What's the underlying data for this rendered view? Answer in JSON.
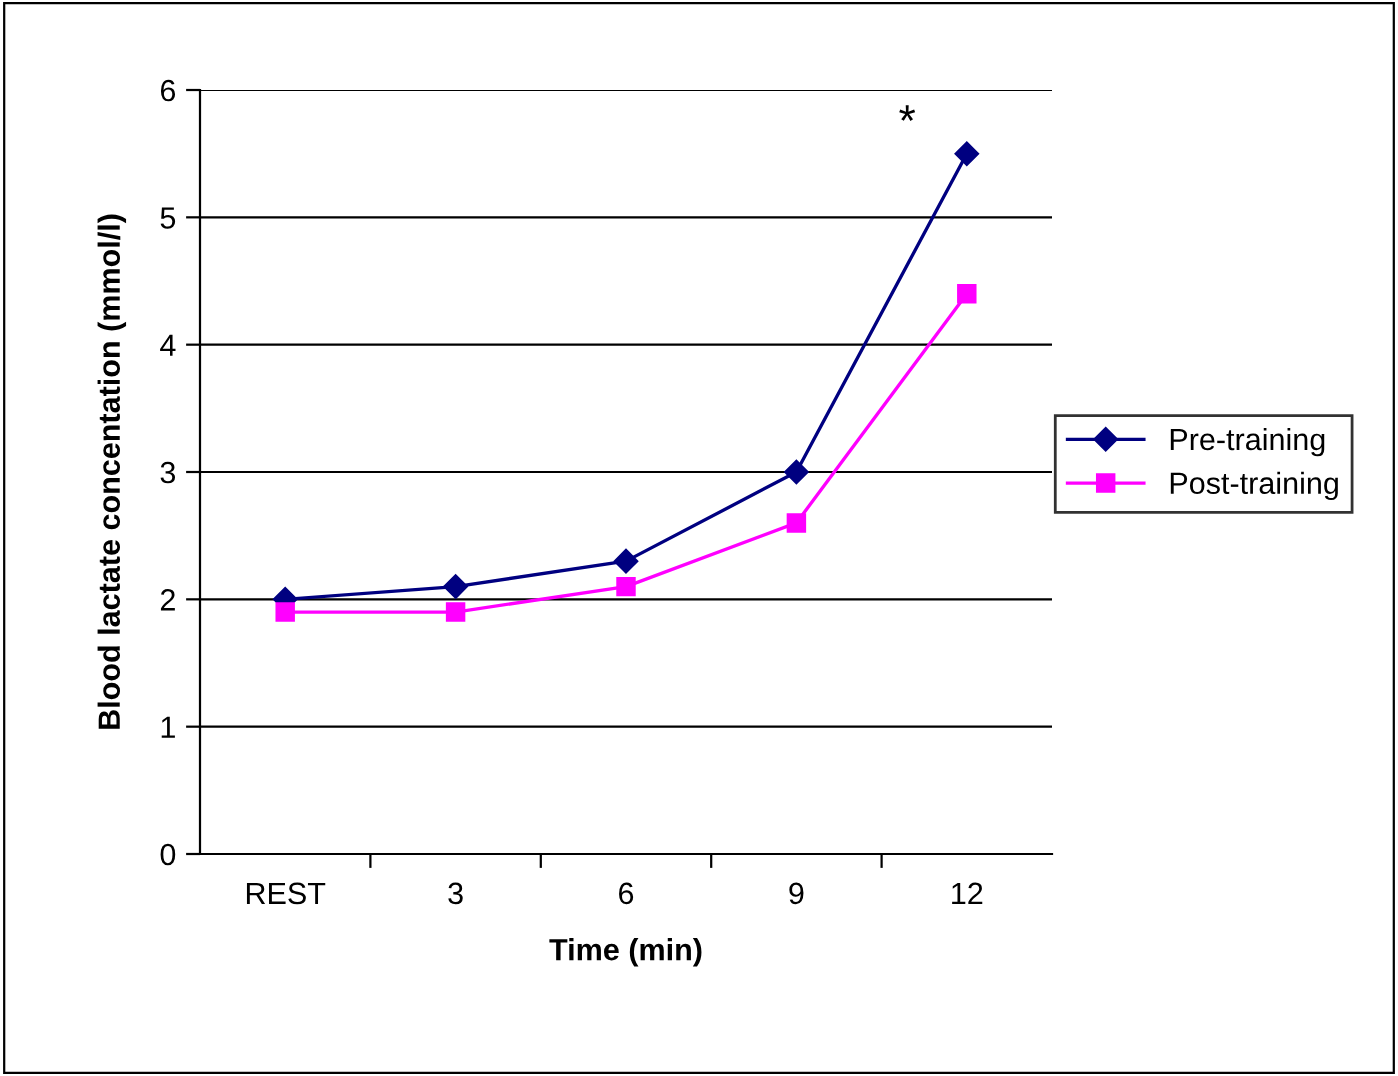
{
  "chart_data": {
    "type": "line",
    "xlabel": "Time (min)",
    "ylabel": "Blood lactate concentation (mmol/l)",
    "categories": [
      "REST",
      "3",
      "6",
      "9",
      "12"
    ],
    "series": [
      {
        "name": "Pre-training",
        "color": "#000080",
        "marker": "diamond",
        "values": [
          2.0,
          2.1,
          2.3,
          3.0,
          5.5
        ]
      },
      {
        "name": "Post-training",
        "color": "#ff00ff",
        "marker": "square",
        "values": [
          1.9,
          1.9,
          2.1,
          2.6,
          4.4
        ]
      }
    ],
    "ylim": [
      0,
      6
    ],
    "yticks": [
      0,
      1,
      2,
      3,
      4,
      5,
      6
    ],
    "grid": "y",
    "legend": "right",
    "annotations": [
      "*"
    ]
  }
}
